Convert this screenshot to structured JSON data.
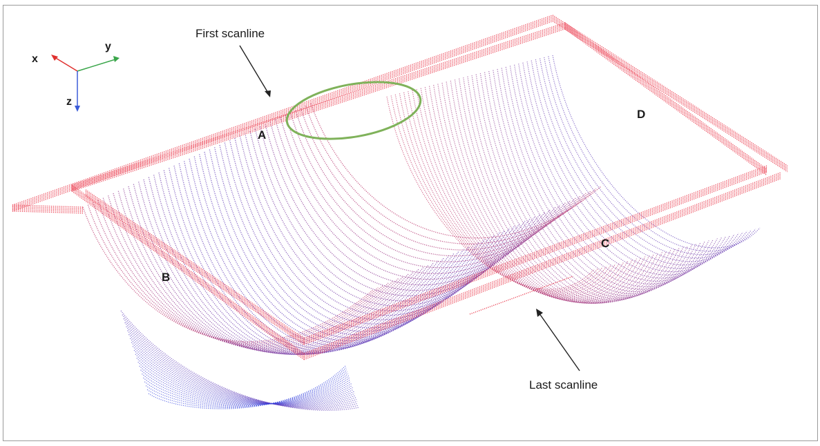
{
  "annotations": {
    "first_scanline": "First scanline",
    "last_scanline": "Last scanline"
  },
  "regions": {
    "a": "A",
    "b": "B",
    "c": "C",
    "d": "D"
  },
  "axes": {
    "x": "x",
    "y": "y",
    "z": "z"
  },
  "colors": {
    "near": "#e8283c",
    "far": "#2e3ee0",
    "x_axis": "#e0302e",
    "y_axis": "#3aa64a",
    "z_axis": "#3a5bd8",
    "highlight_ellipse": "#7fb25a",
    "frame": "#9a9a9a"
  }
}
